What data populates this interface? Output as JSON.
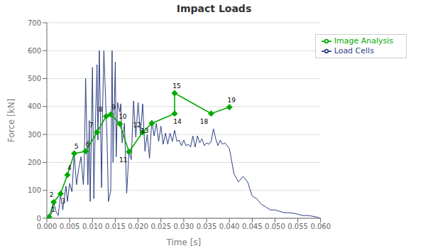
{
  "chart_data": {
    "type": "line",
    "title": "Impact Loads",
    "xlabel": "Time [s]",
    "ylabel": "Force [kN]",
    "xlim": [
      0.0,
      0.06
    ],
    "ylim": [
      0,
      700
    ],
    "xticks": [
      {
        "value": 0.0,
        "label": "0.000"
      },
      {
        "value": 0.005,
        "label": "0.005"
      },
      {
        "value": 0.01,
        "label": "0.010"
      },
      {
        "value": 0.015,
        "label": "0.015"
      },
      {
        "value": 0.02,
        "label": "0.020"
      },
      {
        "value": 0.025,
        "label": "0.025"
      },
      {
        "value": 0.03,
        "label": "0.030"
      },
      {
        "value": 0.035,
        "label": "0.035"
      },
      {
        "value": 0.04,
        "label": "0.040"
      },
      {
        "value": 0.045,
        "label": "0.045"
      },
      {
        "value": 0.05,
        "label": "0.050"
      },
      {
        "value": 0.055,
        "label": "0.055"
      },
      {
        "value": 0.06,
        "label": "0.060"
      }
    ],
    "yticks": [
      0,
      100,
      200,
      300,
      400,
      500,
      600,
      700
    ],
    "grid": true,
    "legend": "upper right",
    "series": [
      {
        "name": "Load Cells",
        "color": "#2e4080",
        "marker": "none",
        "x": [
          0.0,
          0.0005,
          0.001,
          0.0015,
          0.002,
          0.0025,
          0.003,
          0.0035,
          0.004,
          0.0042,
          0.0045,
          0.005,
          0.0055,
          0.006,
          0.0065,
          0.007,
          0.0075,
          0.008,
          0.0082,
          0.0085,
          0.009,
          0.0093,
          0.0095,
          0.01,
          0.0103,
          0.0105,
          0.011,
          0.0112,
          0.0115,
          0.012,
          0.0122,
          0.0125,
          0.013,
          0.0132,
          0.0135,
          0.014,
          0.0143,
          0.0145,
          0.015,
          0.0152,
          0.0155,
          0.016,
          0.0162,
          0.0165,
          0.017,
          0.0175,
          0.018,
          0.0185,
          0.019,
          0.0195,
          0.02,
          0.0205,
          0.021,
          0.0215,
          0.022,
          0.0225,
          0.023,
          0.0235,
          0.024,
          0.0245,
          0.025,
          0.0255,
          0.026,
          0.0265,
          0.027,
          0.0275,
          0.028,
          0.0285,
          0.029,
          0.0295,
          0.03,
          0.0305,
          0.031,
          0.0315,
          0.032,
          0.0325,
          0.033,
          0.0335,
          0.034,
          0.0345,
          0.035,
          0.0355,
          0.036,
          0.0365,
          0.037,
          0.0375,
          0.038,
          0.0385,
          0.039,
          0.04,
          0.041,
          0.042,
          0.043,
          0.044,
          0.045,
          0.046,
          0.047,
          0.048,
          0.049,
          0.05,
          0.051,
          0.052,
          0.053,
          0.054,
          0.055,
          0.056,
          0.057,
          0.058,
          0.059,
          0.06
        ],
        "values": [
          0,
          5,
          15,
          55,
          25,
          10,
          85,
          30,
          95,
          115,
          60,
          125,
          95,
          230,
          120,
          180,
          220,
          120,
          200,
          500,
          120,
          350,
          60,
          540,
          70,
          250,
          550,
          280,
          600,
          110,
          380,
          600,
          370,
          280,
          60,
          100,
          600,
          200,
          560,
          220,
          415,
          380,
          410,
          270,
          340,
          90,
          240,
          210,
          420,
          290,
          415,
          300,
          410,
          240,
          300,
          215,
          350,
          295,
          340,
          275,
          330,
          265,
          305,
          265,
          305,
          275,
          315,
          275,
          280,
          260,
          280,
          260,
          265,
          255,
          295,
          255,
          295,
          270,
          285,
          260,
          270,
          265,
          275,
          320,
          285,
          260,
          280,
          265,
          270,
          250,
          160,
          130,
          150,
          130,
          80,
          70,
          50,
          40,
          30,
          30,
          25,
          20,
          20,
          18,
          15,
          10,
          10,
          8,
          5,
          0
        ]
      },
      {
        "name": "Image Analysis",
        "color": "#00aa00",
        "marker": "diamond",
        "x": [
          0.0005,
          0.0015,
          0.003,
          0.0045,
          0.006,
          0.0085,
          0.011,
          0.013,
          0.014,
          0.016,
          0.018,
          0.021,
          0.023,
          0.028,
          0.028,
          0.036,
          0.04
        ],
        "values": [
          5,
          58,
          88,
          155,
          232,
          240,
          308,
          365,
          372,
          338,
          238,
          308,
          340,
          375,
          448,
          375,
          398
        ],
        "point_labels": [
          "1",
          "2",
          "3",
          "4",
          "5",
          "6",
          "7",
          "8",
          "9",
          "10",
          "11",
          "12",
          "13",
          "14",
          "15",
          "18",
          "19"
        ]
      }
    ]
  }
}
